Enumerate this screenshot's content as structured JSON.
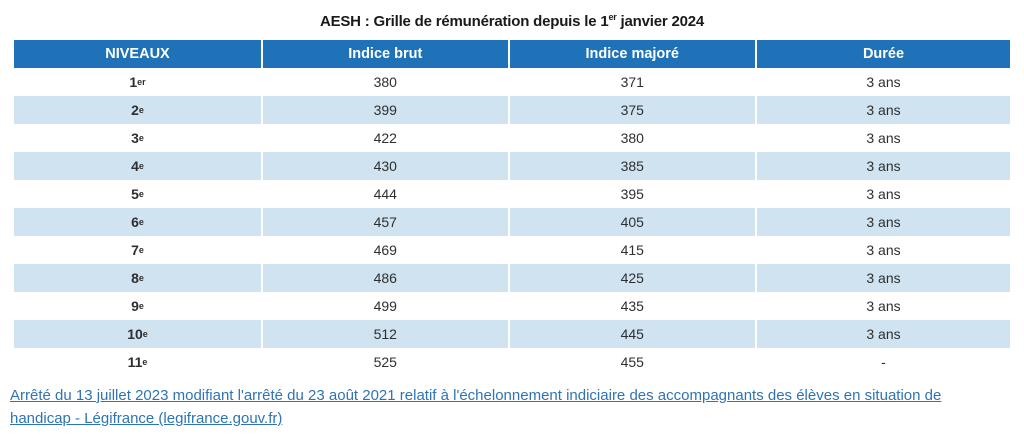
{
  "title": {
    "prefix": "AESH : Grille de rémunération depuis le 1",
    "superscript": "er",
    "suffix": " janvier 2024"
  },
  "table": {
    "headers": [
      "NIVEAUX",
      "Indice brut",
      "Indice majoré",
      "Durée"
    ],
    "rows": [
      {
        "niveau": {
          "num": "1",
          "sup": "er"
        },
        "indice_brut": "380",
        "indice_majore": "371",
        "duree": "3 ans"
      },
      {
        "niveau": {
          "num": "2",
          "sup": "e"
        },
        "indice_brut": "399",
        "indice_majore": "375",
        "duree": "3 ans"
      },
      {
        "niveau": {
          "num": "3",
          "sup": "e"
        },
        "indice_brut": "422",
        "indice_majore": "380",
        "duree": "3 ans"
      },
      {
        "niveau": {
          "num": "4",
          "sup": "e"
        },
        "indice_brut": "430",
        "indice_majore": "385",
        "duree": "3 ans"
      },
      {
        "niveau": {
          "num": "5",
          "sup": "e"
        },
        "indice_brut": "444",
        "indice_majore": "395",
        "duree": "3 ans"
      },
      {
        "niveau": {
          "num": "6",
          "sup": "e"
        },
        "indice_brut": "457",
        "indice_majore": "405",
        "duree": "3 ans"
      },
      {
        "niveau": {
          "num": "7",
          "sup": "e"
        },
        "indice_brut": "469",
        "indice_majore": "415",
        "duree": "3 ans"
      },
      {
        "niveau": {
          "num": "8",
          "sup": "e"
        },
        "indice_brut": "486",
        "indice_majore": "425",
        "duree": "3 ans"
      },
      {
        "niveau": {
          "num": "9",
          "sup": "e"
        },
        "indice_brut": "499",
        "indice_majore": "435",
        "duree": "3 ans"
      },
      {
        "niveau": {
          "num": "10",
          "sup": "e"
        },
        "indice_brut": "512",
        "indice_majore": "445",
        "duree": "3 ans"
      },
      {
        "niveau": {
          "num": "11",
          "sup": "e"
        },
        "indice_brut": "525",
        "indice_majore": "455",
        "duree": "-"
      }
    ]
  },
  "footer": {
    "link_text": "Arrêté du 13 juillet 2023 modifiant l'arrêté du 23 août 2021 relatif à l'échelonnement indiciaire des accompagnants des élèves en situation de handicap - Légifrance (legifrance.gouv.fr)"
  },
  "colors": {
    "header_bg": "#1f72b8",
    "row_alt_bg": "#cfe3f1",
    "link": "#2e74b5"
  }
}
